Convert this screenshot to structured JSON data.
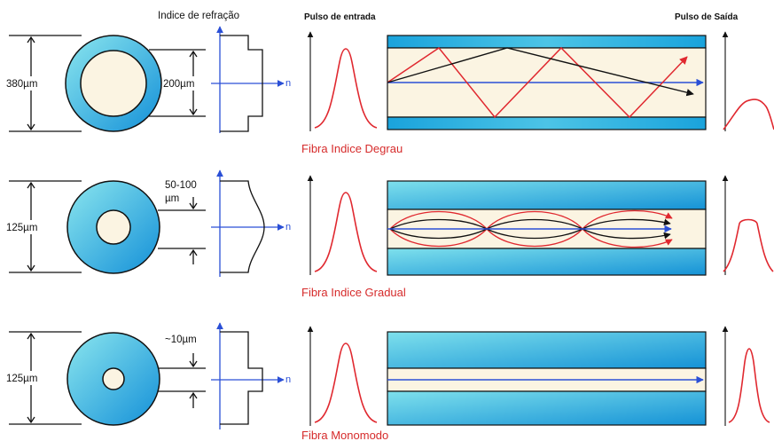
{
  "headers": {
    "refractive_index": "Indice de refração",
    "input_pulse": "Pulso de entrada",
    "output_pulse": "Pulso de Saída"
  },
  "axis_label": "n",
  "colors": {
    "cladding_dark": "#1aa3dc",
    "cladding_light": "#7ee0ec",
    "core": "#fbf4e2",
    "ray": "#e0282f",
    "axis": "#2a4fd6"
  },
  "fibers": [
    {
      "caption": "Fibra Indice Degrau",
      "outer_diameter": "380µm",
      "core_diameter": "200µm",
      "profile": "step"
    },
    {
      "caption": "Fibra Indice Gradual",
      "outer_diameter": "125µm",
      "core_diameter_line1": "50-100",
      "core_diameter_line2": "µm",
      "profile": "graded"
    },
    {
      "caption": "Fibra Monomodo",
      "outer_diameter": "125µm",
      "core_diameter": "~10µm",
      "profile": "single-mode"
    }
  ]
}
